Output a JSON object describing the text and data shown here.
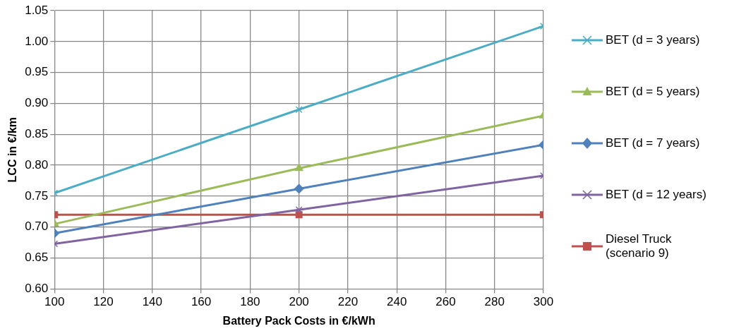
{
  "chart_data": {
    "type": "line",
    "xlabel": "Battery Pack Costs in €/kWh",
    "ylabel": "LCC in €/km",
    "x": [
      100,
      200,
      300
    ],
    "xlim": [
      100,
      300
    ],
    "xticks": [
      100,
      120,
      140,
      160,
      180,
      200,
      220,
      240,
      260,
      280,
      300
    ],
    "ylim": [
      0.6,
      1.05
    ],
    "yticks": [
      {
        "value": 0.6,
        "label": "0.60"
      },
      {
        "value": 0.65,
        "label": "0.65"
      },
      {
        "value": 0.7,
        "label": "0.70"
      },
      {
        "value": 0.75,
        "label": "0.75"
      },
      {
        "value": 0.8,
        "label": "0.80"
      },
      {
        "value": 0.85,
        "label": "0.85"
      },
      {
        "value": 0.9,
        "label": "0.90"
      },
      {
        "value": 0.95,
        "label": "0.95"
      },
      {
        "value": 1.0,
        "label": "1.00"
      },
      {
        "value": 1.05,
        "label": "1.05"
      }
    ],
    "grid": true,
    "legend": "right",
    "line_style": "solid",
    "series": [
      {
        "name": "BET (d = 3 years)",
        "color": "#4bacc6",
        "marker": "cross",
        "values": [
          0.755,
          0.89,
          1.025
        ]
      },
      {
        "name": "BET (d = 5 years)",
        "color": "#9bbb59",
        "marker": "triangle",
        "values": [
          0.705,
          0.795,
          0.88
        ]
      },
      {
        "name": "BET (d = 7 years)",
        "color": "#4f81bd",
        "marker": "diamond",
        "values": [
          0.69,
          0.762,
          0.833
        ]
      },
      {
        "name": "BET (d = 12 years)",
        "color": "#8064a2",
        "marker": "cross",
        "values": [
          0.673,
          0.728,
          0.783
        ]
      },
      {
        "name": "Diesel Truck (scenario 9)",
        "color": "#c0504d",
        "marker": "square",
        "values": [
          0.72,
          0.72,
          0.72
        ]
      }
    ]
  }
}
